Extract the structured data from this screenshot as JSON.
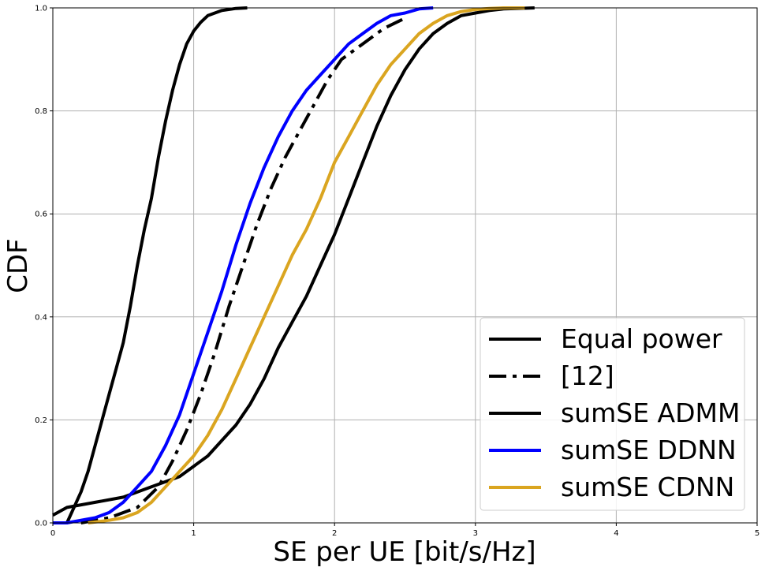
{
  "chart_data": {
    "type": "line",
    "title": "",
    "xlabel": "SE per UE [bit/s/Hz]",
    "ylabel": "CDF",
    "xlim": [
      0,
      5
    ],
    "ylim": [
      0,
      1
    ],
    "xticks": [
      "0",
      "1",
      "2",
      "3",
      "4",
      "5"
    ],
    "yticks": [
      "0.0",
      "0.2",
      "0.4",
      "0.6",
      "0.8",
      "1.0"
    ],
    "grid": true,
    "legend_position": "lower-right",
    "series": [
      {
        "name": "Equal power",
        "color": "#000000",
        "style": "solid",
        "x": [
          0.0,
          0.1,
          0.15,
          0.2,
          0.25,
          0.3,
          0.35,
          0.4,
          0.45,
          0.5,
          0.55,
          0.6,
          0.65,
          0.7,
          0.75,
          0.8,
          0.85,
          0.9,
          0.95,
          1.0,
          1.05,
          1.1,
          1.2,
          1.3,
          1.38
        ],
        "y": [
          0.0,
          0.0,
          0.03,
          0.06,
          0.1,
          0.15,
          0.2,
          0.25,
          0.3,
          0.35,
          0.42,
          0.5,
          0.57,
          0.63,
          0.71,
          0.78,
          0.84,
          0.89,
          0.93,
          0.955,
          0.972,
          0.985,
          0.995,
          0.999,
          1.0
        ]
      },
      {
        "name": "[12]",
        "color": "#000000",
        "style": "dashdot",
        "x": [
          0.2,
          0.4,
          0.6,
          0.75,
          0.85,
          0.95,
          1.05,
          1.15,
          1.25,
          1.35,
          1.45,
          1.55,
          1.65,
          1.75,
          1.85,
          1.95,
          2.05,
          2.2,
          2.35,
          2.5
        ],
        "y": [
          0.0,
          0.01,
          0.03,
          0.07,
          0.12,
          0.18,
          0.25,
          0.33,
          0.42,
          0.5,
          0.58,
          0.65,
          0.71,
          0.76,
          0.81,
          0.86,
          0.9,
          0.93,
          0.96,
          0.98
        ]
      },
      {
        "name": "sumSE ADMM",
        "color": "#000000",
        "style": "solid",
        "x": [
          0.0,
          0.1,
          0.3,
          0.5,
          0.7,
          0.9,
          1.0,
          1.1,
          1.2,
          1.3,
          1.4,
          1.5,
          1.6,
          1.7,
          1.8,
          1.9,
          2.0,
          2.1,
          2.2,
          2.3,
          2.4,
          2.5,
          2.6,
          2.7,
          2.8,
          2.9,
          3.0,
          3.1,
          3.2,
          3.3,
          3.42
        ],
        "y": [
          0.015,
          0.03,
          0.04,
          0.05,
          0.07,
          0.09,
          0.11,
          0.13,
          0.16,
          0.19,
          0.23,
          0.28,
          0.34,
          0.39,
          0.44,
          0.5,
          0.56,
          0.63,
          0.7,
          0.77,
          0.83,
          0.88,
          0.92,
          0.95,
          0.97,
          0.985,
          0.99,
          0.995,
          0.998,
          0.999,
          1.0
        ]
      },
      {
        "name": "sumSE DDNN",
        "color": "#0000ff",
        "style": "solid",
        "x": [
          0.0,
          0.1,
          0.2,
          0.3,
          0.4,
          0.5,
          0.6,
          0.7,
          0.8,
          0.9,
          1.0,
          1.1,
          1.2,
          1.3,
          1.4,
          1.5,
          1.6,
          1.7,
          1.8,
          1.9,
          2.0,
          2.1,
          2.2,
          2.3,
          2.4,
          2.5,
          2.6,
          2.7
        ],
        "y": [
          0.0,
          0.0,
          0.005,
          0.01,
          0.02,
          0.04,
          0.07,
          0.1,
          0.15,
          0.21,
          0.29,
          0.37,
          0.45,
          0.54,
          0.62,
          0.69,
          0.75,
          0.8,
          0.84,
          0.87,
          0.9,
          0.93,
          0.95,
          0.97,
          0.985,
          0.99,
          0.998,
          1.0
        ]
      },
      {
        "name": "sumSE CDNN",
        "color": "#daa520",
        "style": "solid",
        "x": [
          0.25,
          0.4,
          0.5,
          0.6,
          0.7,
          0.8,
          0.9,
          1.0,
          1.1,
          1.2,
          1.3,
          1.4,
          1.5,
          1.6,
          1.7,
          1.8,
          1.9,
          2.0,
          2.1,
          2.2,
          2.3,
          2.4,
          2.5,
          2.6,
          2.7,
          2.8,
          2.9,
          3.0,
          3.1,
          3.2,
          3.35
        ],
        "y": [
          0.0,
          0.005,
          0.01,
          0.02,
          0.04,
          0.07,
          0.1,
          0.13,
          0.17,
          0.22,
          0.28,
          0.34,
          0.4,
          0.46,
          0.52,
          0.57,
          0.63,
          0.7,
          0.75,
          0.8,
          0.85,
          0.89,
          0.92,
          0.95,
          0.97,
          0.985,
          0.993,
          0.997,
          0.999,
          1.0,
          1.0
        ]
      }
    ],
    "legend": [
      {
        "label": "Equal power",
        "color": "#000000",
        "style": "solid"
      },
      {
        "label": "[12]",
        "color": "#000000",
        "style": "dashdot"
      },
      {
        "label": "sumSE ADMM",
        "color": "#000000",
        "style": "solid"
      },
      {
        "label": "sumSE DDNN",
        "color": "#0000ff",
        "style": "solid"
      },
      {
        "label": "sumSE CDNN",
        "color": "#daa520",
        "style": "solid"
      }
    ]
  }
}
